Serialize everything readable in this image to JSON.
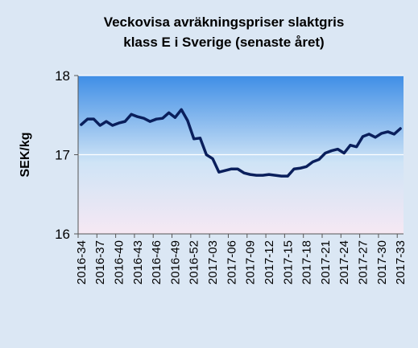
{
  "chart_data": {
    "type": "line",
    "title_lines": [
      "Veckovisa avräkningspriser slaktgris",
      "klass E i Sverige (senaste året)"
    ],
    "xlabel": "",
    "ylabel": "SEK/kg",
    "ylim": [
      16,
      18
    ],
    "yticks": [
      16,
      17,
      18
    ],
    "grid": true,
    "legend": "none",
    "colors": {
      "line": "#0a1f5c",
      "plot_top": "#3f8ee6",
      "plot_mid": "#cfe4f6",
      "plot_bottom": "#f6e8f3",
      "background": "#dbe7f4",
      "gridline": "#ffffff"
    },
    "xtick_labels": [
      "2016-34",
      "2016-37",
      "2016-40",
      "2016-43",
      "2016-46",
      "2016-49",
      "2016-52",
      "2017-03",
      "2017-06",
      "2017-09",
      "2017-12",
      "2017-15",
      "2017-18",
      "2017-21",
      "2017-24",
      "2017-27",
      "2017-30",
      "2017-33"
    ],
    "series": [
      {
        "values": [
          17.38,
          17.45,
          17.45,
          17.37,
          17.42,
          17.37,
          17.4,
          17.42,
          17.51,
          17.48,
          17.46,
          17.42,
          17.45,
          17.46,
          17.53,
          17.47,
          17.57,
          17.43,
          17.2,
          17.21,
          17.0,
          16.95,
          16.78,
          16.8,
          16.82,
          16.82,
          16.77,
          16.75,
          16.74,
          16.74,
          16.75,
          16.74,
          16.73,
          16.73,
          16.82,
          16.83,
          16.85,
          16.91,
          16.94,
          17.02,
          17.05,
          17.07,
          17.02,
          17.12,
          17.1,
          17.23,
          17.26,
          17.22,
          17.27,
          17.29,
          17.26,
          17.33
        ]
      }
    ]
  }
}
